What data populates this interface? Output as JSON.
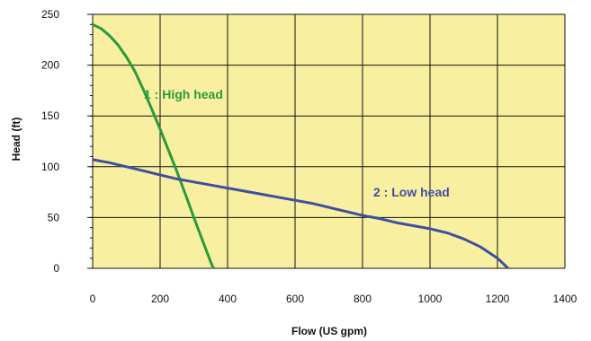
{
  "chart_data": {
    "type": "line",
    "title": "",
    "xlabel": "Flow (US gpm)",
    "ylabel": "Head (ft)",
    "xlim": [
      0,
      1400
    ],
    "ylim": [
      0,
      250
    ],
    "x_ticks": [
      0,
      200,
      400,
      600,
      800,
      1000,
      1200,
      1400
    ],
    "y_ticks": [
      0,
      50,
      100,
      150,
      200,
      250
    ],
    "grid": true,
    "plot_background": "#f8f0a0",
    "grid_color": "#111111",
    "series": [
      {
        "name": "1 : High head",
        "color": "#2a9a3c",
        "points": [
          [
            0,
            240
          ],
          [
            25,
            236
          ],
          [
            50,
            229
          ],
          [
            75,
            220
          ],
          [
            100,
            208
          ],
          [
            125,
            194
          ],
          [
            150,
            176
          ],
          [
            175,
            157
          ],
          [
            200,
            137
          ],
          [
            225,
            116
          ],
          [
            250,
            95
          ],
          [
            275,
            73
          ],
          [
            300,
            50
          ],
          [
            325,
            28
          ],
          [
            350,
            6
          ],
          [
            358,
            0
          ]
        ]
      },
      {
        "name": "2 : Low head",
        "color": "#3f4fa0",
        "points": [
          [
            0,
            107
          ],
          [
            50,
            104
          ],
          [
            100,
            100
          ],
          [
            150,
            96
          ],
          [
            200,
            92
          ],
          [
            250,
            88
          ],
          [
            300,
            85
          ],
          [
            350,
            82
          ],
          [
            400,
            79
          ],
          [
            450,
            76
          ],
          [
            500,
            73
          ],
          [
            550,
            70
          ],
          [
            600,
            67
          ],
          [
            650,
            64
          ],
          [
            700,
            60
          ],
          [
            750,
            56
          ],
          [
            800,
            52
          ],
          [
            850,
            49
          ],
          [
            900,
            45
          ],
          [
            950,
            42
          ],
          [
            1000,
            39
          ],
          [
            1050,
            35
          ],
          [
            1100,
            29
          ],
          [
            1150,
            21
          ],
          [
            1200,
            10
          ],
          [
            1225,
            2
          ],
          [
            1232,
            0
          ]
        ]
      }
    ]
  }
}
